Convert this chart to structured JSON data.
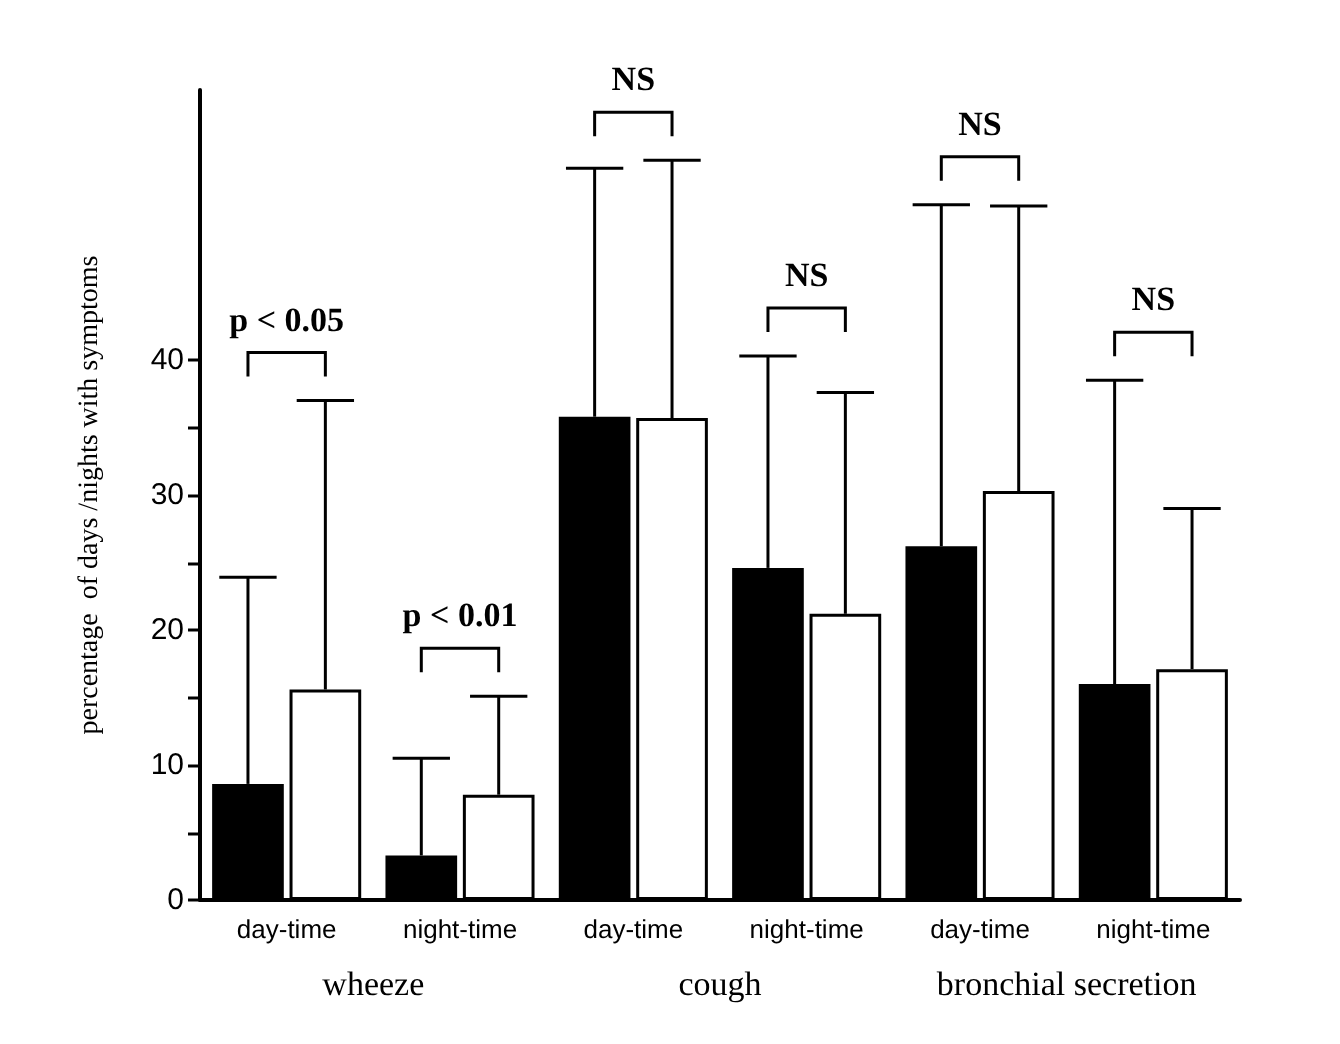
{
  "chart_data": {
    "type": "bar",
    "ylabel": "percentage  of days /nights with symptoms",
    "categories": [
      "day-time",
      "night-time",
      "day-time",
      "night-time",
      "day-time",
      "night-time"
    ],
    "series": [
      {
        "color": "#000000",
        "values": [
          8.6,
          3.3,
          35.8,
          24.6,
          26.2,
          16.0
        ],
        "errors": [
          [
            8.6,
            23.9
          ],
          [
            3.3,
            10.5
          ],
          [
            35.8,
            54.2
          ],
          [
            24.6,
            40.3
          ],
          [
            26.2,
            51.5
          ],
          [
            16.0,
            38.5
          ]
        ]
      },
      {
        "color": "#ffffff",
        "values": [
          15.6,
          7.8,
          35.7,
          21.2,
          30.3,
          17.1
        ],
        "errors": [
          [
            15.6,
            37.0
          ],
          [
            7.8,
            15.1
          ],
          [
            35.7,
            54.8
          ],
          [
            21.2,
            37.6
          ],
          [
            30.3,
            51.4
          ],
          [
            17.1,
            29.0
          ]
        ]
      }
    ],
    "ylim": [
      0,
      60
    ],
    "yticks": [
      0,
      {
        "value": 5,
        "label": null
      },
      10,
      {
        "value": 15,
        "label": null
      },
      20,
      {
        "value": 25,
        "label": null
      },
      30,
      {
        "value": 35,
        "label": null
      },
      40
    ],
    "annotations": [
      "p < 0.05",
      "p < 0.01",
      "NS",
      "NS",
      "NS",
      "NS",
      "wheeze",
      "cough",
      "bronchial secretion"
    ],
    "grid": false
  }
}
